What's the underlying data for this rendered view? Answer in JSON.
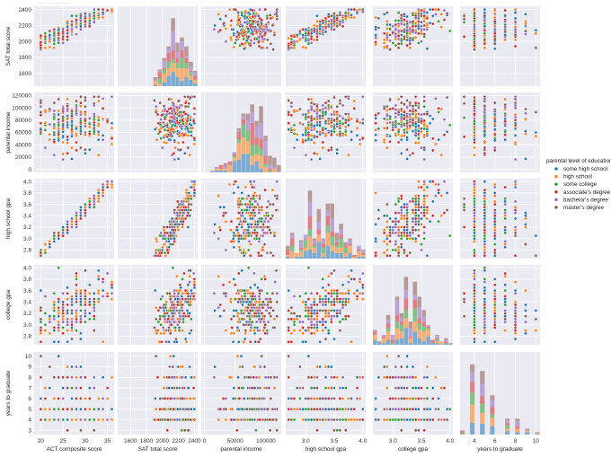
{
  "chart_data": {
    "type": "pairplot",
    "variables": [
      "ACT composite score",
      "SAT total score",
      "parental income",
      "high school gpa",
      "college gpa",
      "years to graduate"
    ],
    "axis_ranges": {
      "ACT composite score": [
        18.5,
        36.5
      ],
      "SAT total score": [
        1440,
        2440
      ],
      "parental income": [
        -5000,
        125000
      ],
      "high school gpa": [
        2.65,
        4.05
      ],
      "college gpa": [
        2.65,
        4.05
      ],
      "years to graduate": [
        2.6,
        10.4
      ]
    },
    "ticks": {
      "ACT composite score": [
        20,
        25,
        30,
        35
      ],
      "SAT total score": [
        1600,
        1800,
        2000,
        2200,
        2400
      ],
      "parental income": [
        0,
        50000,
        100000
      ],
      "high school gpa": [
        3.0,
        3.5,
        4.0
      ],
      "college gpa": [
        3.0,
        3.5,
        4.0
      ],
      "years to graduate": [
        4,
        6,
        8,
        10
      ]
    },
    "y_ticks": {
      "ACT composite score": [
        1600,
        1800,
        2000,
        2200,
        2400
      ],
      "SAT total score": [
        1600,
        1800,
        2000,
        2200,
        2400
      ],
      "parental income": [
        0,
        20000,
        40000,
        60000,
        80000,
        100000,
        120000
      ],
      "high school gpa": [
        2.8,
        3.0,
        3.2,
        3.4,
        3.6,
        3.8,
        4.0
      ],
      "college gpa": [
        2.8,
        3.0,
        3.2,
        3.4,
        3.6,
        3.8,
        4.0
      ],
      "years to graduate": [
        3,
        4,
        5,
        6,
        7,
        8,
        9,
        10
      ]
    },
    "x_tick_labels": {
      "ACT composite score": [
        "20",
        "25",
        "30",
        "35"
      ],
      "SAT total score": [
        "1600",
        "1800",
        "2000",
        "2200",
        "2400"
      ],
      "parental income": [
        "0",
        "50000",
        "100000"
      ],
      "high school gpa": [
        "3.0",
        "3.5",
        "4.0"
      ],
      "college gpa": [
        "3.0",
        "3.5",
        "4.0"
      ],
      "years to graduate": [
        "4",
        "6",
        "8",
        "10"
      ]
    },
    "y_tick_labels": {
      "SAT total score": [
        "1600",
        "1800",
        "2000",
        "2200",
        "2400"
      ],
      "parental income": [
        "0",
        "20000",
        "40000",
        "60000",
        "80000",
        "100000",
        "120000"
      ],
      "high school gpa": [
        "2.8",
        "3.0",
        "3.2",
        "3.4",
        "3.6",
        "3.8",
        "4.0"
      ],
      "college gpa": [
        "2.8",
        "3.0",
        "3.2",
        "3.4",
        "3.6",
        "3.8",
        "4.0"
      ],
      "years to graduate": [
        "3",
        "4",
        "5",
        "6",
        "7",
        "8",
        "9",
        "10"
      ]
    },
    "row_variables": [
      "SAT total score",
      "parental income",
      "high school gpa",
      "college gpa",
      "years to graduate"
    ],
    "hue": "parental level of education",
    "categories": [
      "some high school",
      "high school",
      "some college",
      "associate's degree",
      "bachelor's degree",
      "master's degree"
    ],
    "palette": [
      "#1f77b4",
      "#ff7f0e",
      "#2ca02c",
      "#d62728",
      "#9467bd",
      "#8c564b"
    ],
    "approx_sample_size": 260,
    "relationships": {
      "ACT composite score~SAT total score": "strong positive linear",
      "ACT composite score~high school gpa": "strong positive linear",
      "SAT total score~high school gpa": "strong positive linear",
      "high school gpa~college gpa": "positive",
      "SAT total score~parental income": "none (dense cloud)"
    },
    "grid": true,
    "legend_position": "right",
    "background": "#eaeaf2"
  },
  "legend": {
    "title": "parental level of education",
    "items": [
      "some high school",
      "high school",
      "some college",
      "associate's degree",
      "bachelor's degree",
      "master's degree"
    ]
  },
  "top_caption": "..........................."
}
